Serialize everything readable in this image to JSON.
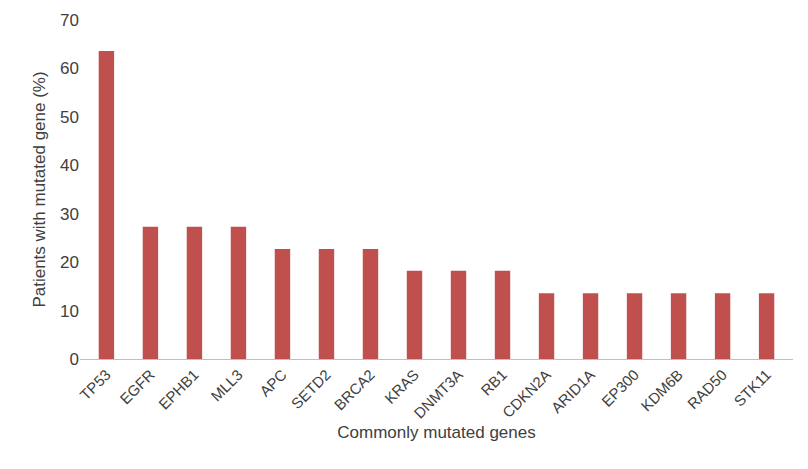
{
  "chart_data": {
    "type": "bar",
    "x_label": "Commonly mutated genes",
    "y_label": "Patients with mutated gene (%)",
    "categories": [
      "TP53",
      "EGFR",
      "EPHB1",
      "MLL3",
      "APC",
      "SETD2",
      "BRCA2",
      "KRAS",
      "DNMT3A",
      "RB1",
      "CDKN2A",
      "ARID1A",
      "EP300",
      "KDM6B",
      "RAD50",
      "STK11"
    ],
    "values": [
      63.6,
      27.3,
      27.3,
      27.3,
      22.7,
      22.7,
      22.7,
      18.2,
      18.2,
      18.2,
      13.6,
      13.6,
      13.6,
      13.6,
      13.6,
      13.6
    ],
    "color": "#c0504d",
    "ylim": [
      0,
      70
    ],
    "yticks": [
      0,
      10,
      20,
      30,
      40,
      50,
      60,
      70
    ],
    "grid": false
  }
}
